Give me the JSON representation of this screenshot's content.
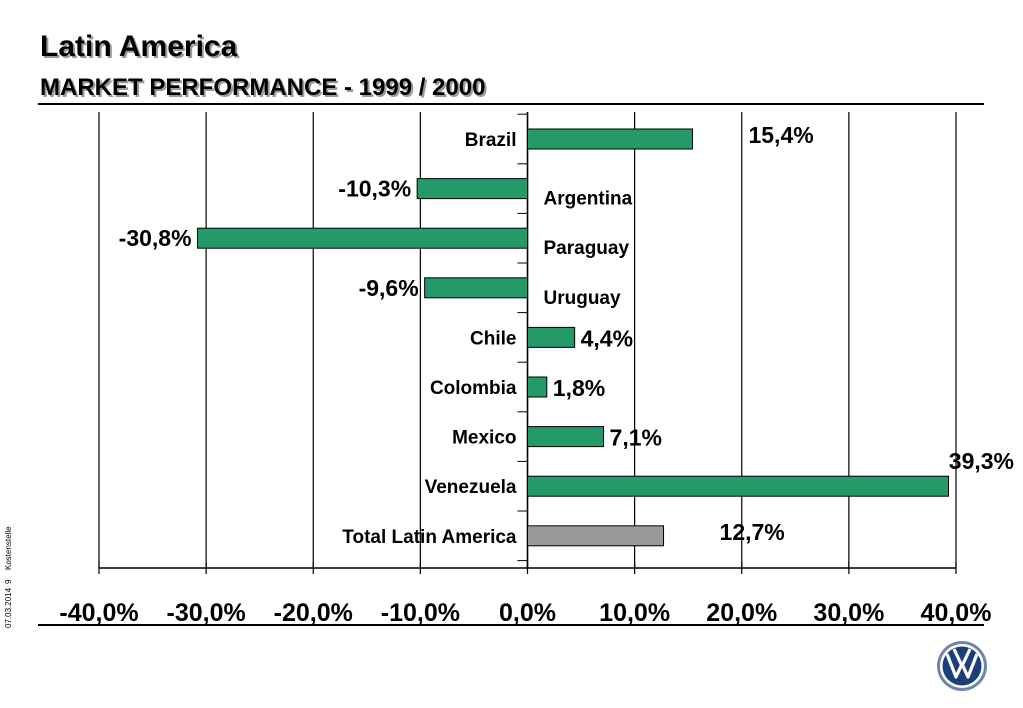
{
  "header": {
    "title": "Latin America",
    "subtitle": "MARKET PERFORMANCE - 1999 / 2000"
  },
  "footer": {
    "date": "07.03.2014",
    "page": "9",
    "cost_center": "Kostenstelle"
  },
  "colors": {
    "bar": "#239a68",
    "total_bar": "#999999",
    "grid": "#000000"
  },
  "chart_data": {
    "type": "bar",
    "orientation": "horizontal",
    "categories": [
      "Brazil",
      "Argentina",
      "Paraguay",
      "Uruguay",
      "Chile",
      "Colombia",
      "Mexico",
      "Venezuela",
      "Total Latin America"
    ],
    "values": [
      15.4,
      -10.3,
      -30.8,
      -9.6,
      4.4,
      1.8,
      7.1,
      39.3,
      12.7
    ],
    "value_labels": [
      "15,4%",
      "-10,3%",
      "-30,8%",
      "-9,6%",
      "4,4%",
      "1,8%",
      "7,1%",
      "39,3%",
      "12,7%"
    ],
    "xlim": [
      -40,
      40
    ],
    "xticks": [
      -40,
      -30,
      -20,
      -10,
      0,
      10,
      20,
      30,
      40
    ],
    "xtick_labels": [
      "-40,0%",
      "-30,0%",
      "-20,0%",
      "-10,0%",
      "0,0%",
      "10,0%",
      "20,0%",
      "30,0%",
      "40,0%"
    ],
    "grid": true,
    "highlight_category": "Total Latin America"
  }
}
